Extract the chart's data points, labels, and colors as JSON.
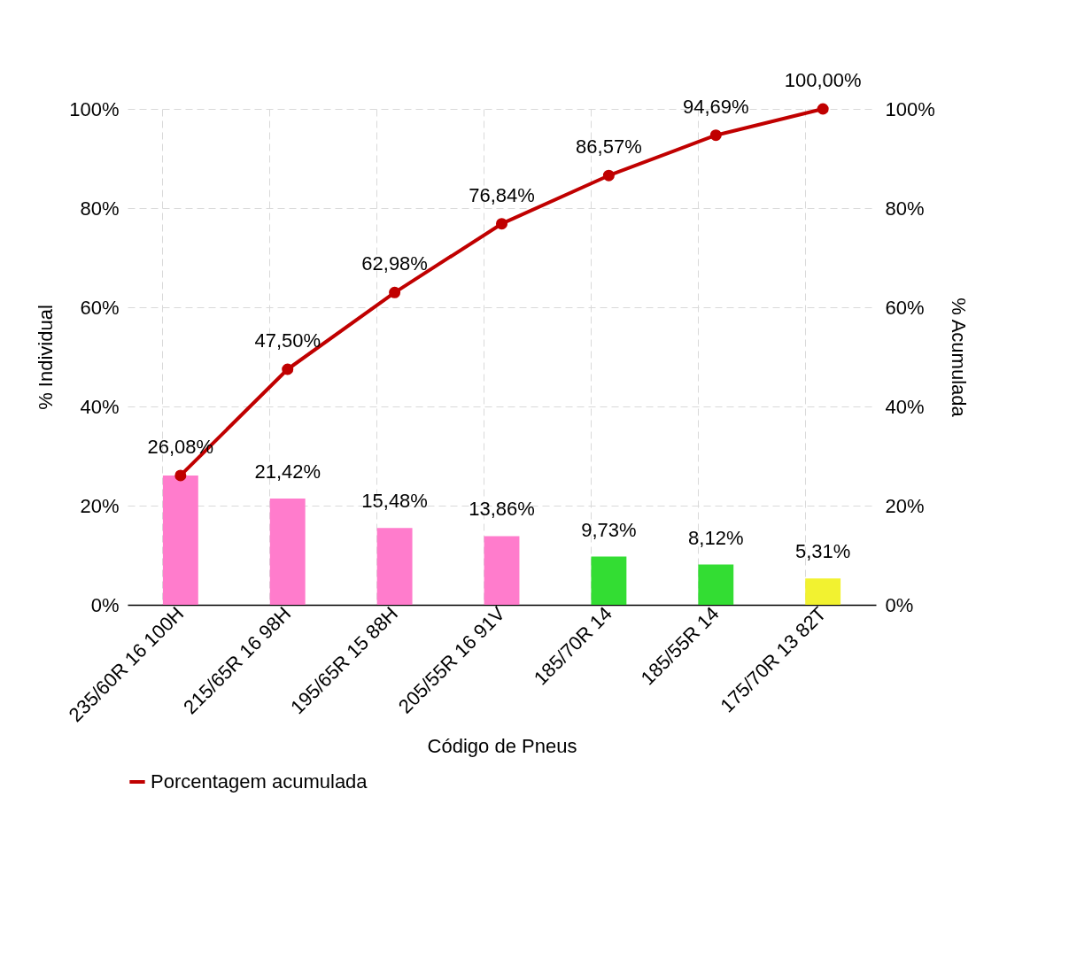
{
  "chart_data": {
    "type": "bar",
    "xlabel": "Código de Pneus",
    "ylabel": "% Individual",
    "y2label": "% Acumulada",
    "categories": [
      "235/60R 16 100H",
      "215/65R 16 98H",
      "195/65R 15 88H",
      "205/55R 16 91V",
      "185/70R 14",
      "185/55R 14",
      "175/70R 13 82T"
    ],
    "series": [
      {
        "colors": [
          "#ff7ccc",
          "#ff7ccc",
          "#ff7ccc",
          "#ff7ccc",
          "#33dd33",
          "#33dd33",
          "#f2f230"
        ],
        "values": [
          26.08,
          21.42,
          15.48,
          13.86,
          9.73,
          8.12,
          5.31
        ],
        "value_labels": [
          null,
          "21,42%",
          "15,48%",
          "13,86%",
          "9,73%",
          "8,12%",
          "5,31%"
        ]
      },
      {
        "type": "line",
        "name": "Porcentagem acumulada",
        "color": "#c00000",
        "axis": "y2",
        "marker": "circle",
        "line_style": "solid",
        "values": [
          26.08,
          47.5,
          62.98,
          76.84,
          86.57,
          94.69,
          100
        ],
        "value_labels": [
          "26,08%",
          "47,50%",
          "62,98%",
          "76,84%",
          "86,57%",
          "94,69%",
          "100,00%"
        ]
      }
    ],
    "ylim": [
      0,
      100
    ],
    "yticks": [
      {
        "value": 0,
        "label": "0%"
      },
      {
        "value": 20,
        "label": "20%"
      },
      {
        "value": 40,
        "label": "40%"
      },
      {
        "value": 60,
        "label": "60%"
      },
      {
        "value": 80,
        "label": "80%"
      },
      {
        "value": 100,
        "label": "100%"
      }
    ],
    "y2lim": [
      0,
      100
    ],
    "y2ticks": [
      {
        "value": 0,
        "label": "0%"
      },
      {
        "value": 20,
        "label": "20%"
      },
      {
        "value": 40,
        "label": "40%"
      },
      {
        "value": 60,
        "label": "60%"
      },
      {
        "value": 80,
        "label": "80%"
      },
      {
        "value": 100,
        "label": "100%"
      }
    ],
    "grid": true,
    "legend": "bottom"
  }
}
